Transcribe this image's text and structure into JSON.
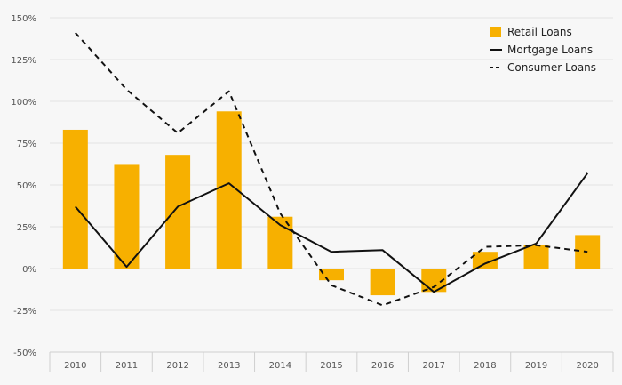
{
  "chart_data": {
    "type": "bar",
    "title": "",
    "xlabel": "",
    "ylabel": "",
    "categories": [
      "2010",
      "2011",
      "2012",
      "2013",
      "2014",
      "2015",
      "2016",
      "2017",
      "2018",
      "2019",
      "2020"
    ],
    "ylim": [
      -50,
      150
    ],
    "yticks": [
      -50,
      -25,
      0,
      25,
      50,
      75,
      100,
      125,
      150
    ],
    "ytick_labels": [
      "-50%",
      "-25%",
      "0%",
      "25%",
      "50%",
      "75%",
      "100%",
      "125%",
      "150%"
    ],
    "grid": true,
    "legend_position": "top-right",
    "series": [
      {
        "name": "Retail Loans",
        "type": "bar",
        "color": "#f7b000",
        "values": [
          83,
          62,
          68,
          94,
          31,
          -7,
          -16,
          -14,
          10,
          14,
          20
        ]
      },
      {
        "name": "Mortgage Loans",
        "type": "line",
        "style": "solid",
        "color": "#111111",
        "values": [
          37,
          1,
          37,
          51,
          26,
          10,
          11,
          -14,
          3,
          15,
          57
        ]
      },
      {
        "name": "Consumer Loans",
        "type": "line",
        "style": "dashed",
        "color": "#111111",
        "values": [
          141,
          107,
          81,
          106,
          33,
          -10,
          -22,
          -11,
          13,
          14,
          10
        ]
      }
    ]
  }
}
